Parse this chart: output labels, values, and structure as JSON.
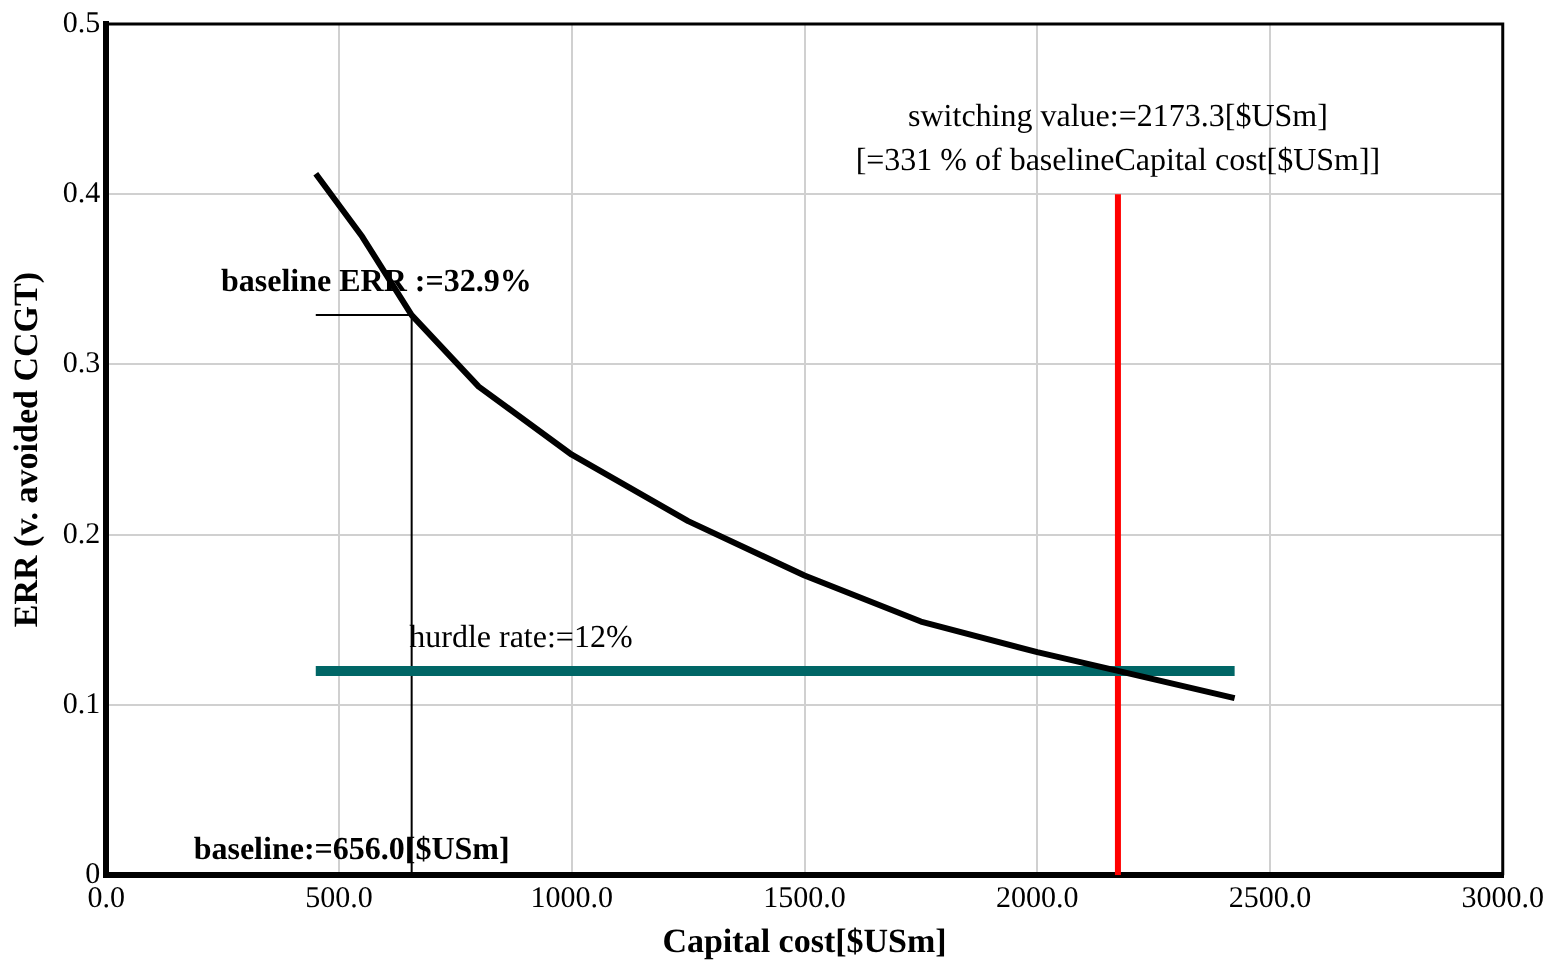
{
  "chart_data": {
    "type": "line",
    "xlabel": "Capital cost[$USm]",
    "ylabel": "ERR (v. avoided CCGT)",
    "xlim": [
      0,
      3000
    ],
    "xticks": [
      {
        "value": 0,
        "label": "0.0"
      },
      {
        "value": 500,
        "label": "500.0"
      },
      {
        "value": 1000,
        "label": "1000.0"
      },
      {
        "value": 1500,
        "label": "1500.0"
      },
      {
        "value": 2000,
        "label": "2000.0"
      },
      {
        "value": 2500,
        "label": "2500.0"
      },
      {
        "value": 3000,
        "label": "3000.0"
      }
    ],
    "ylim": [
      0,
      0.5
    ],
    "yticks": [
      0,
      0.1,
      0.2,
      0.3,
      0.4,
      0.5
    ],
    "grid": true,
    "legend": false,
    "marker": "none",
    "line_style": "solid",
    "series": [
      {
        "color": "#000000",
        "x": [
          450,
          550,
          656,
          800,
          1000,
          1250,
          1500,
          1750,
          2000,
          2173.3,
          2424
        ],
        "values": [
          0.412,
          0.375,
          0.329,
          0.287,
          0.247,
          0.208,
          0.176,
          0.149,
          0.131,
          0.12,
          0.104
        ]
      },
      {
        "color": "#006666",
        "x": [
          450,
          2424
        ],
        "values": [
          0.12,
          0.12
        ]
      },
      {
        "color": "#ff0000",
        "x": [
          2173.3,
          2173.3
        ],
        "values": [
          0,
          0.4
        ]
      },
      {
        "color": "#000000",
        "x": [
          656,
          656
        ],
        "values": [
          0,
          0.329
        ]
      },
      {
        "color": "#000000",
        "x": [
          450,
          656
        ],
        "values": [
          0.329,
          0.329
        ]
      }
    ],
    "annotations": [
      {
        "text": "baseline ERR :=32.9%",
        "x": 656,
        "y": 0.329
      },
      {
        "text": "switching value:=2173.3[$USm]",
        "x": 2173.3,
        "y": 0.4
      },
      "[=331 % of baselineCapital cost[$USm]]",
      {
        "text": "hurdle rate:=12%",
        "x": 900,
        "y": 0.12
      },
      {
        "text": "baseline:=656.0[$USm]",
        "x": 656,
        "y": 0
      }
    ]
  }
}
